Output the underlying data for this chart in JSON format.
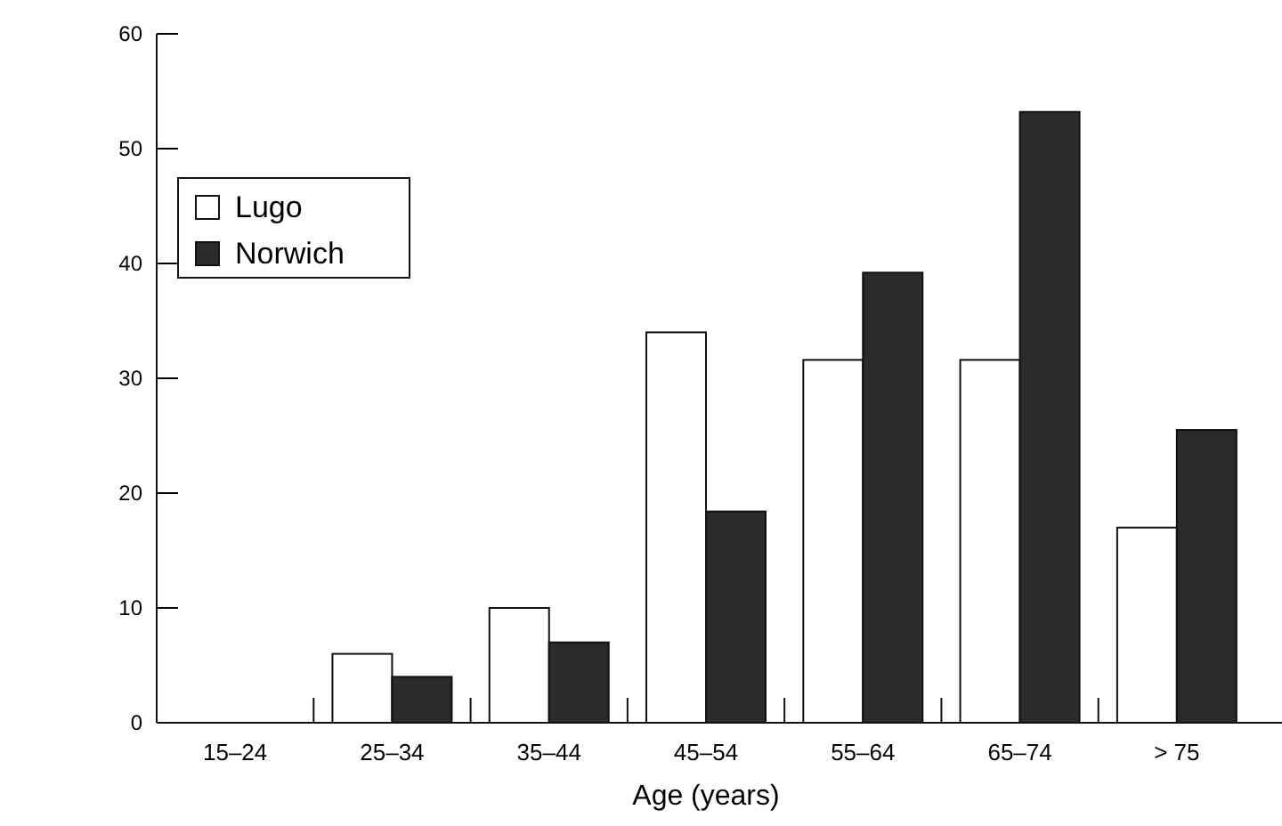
{
  "chart_data": {
    "type": "bar",
    "xlabel": "Age (years)",
    "categories": [
      "15–24",
      "25–34",
      "35–44",
      "45–54",
      "55–64",
      "65–74",
      "> 75"
    ],
    "series": [
      {
        "name": "Lugo",
        "color": "#ffffff",
        "values": [
          0,
          6,
          10,
          34,
          31.6,
          31.6,
          17
        ]
      },
      {
        "name": "Norwich",
        "color": "#2b2b2b",
        "values": [
          0,
          4,
          7,
          18.4,
          39.2,
          53.2,
          25.5
        ]
      }
    ],
    "ylim": [
      0,
      60
    ],
    "yticks": [
      0,
      10,
      20,
      30,
      40,
      50,
      60
    ],
    "legend": "top left",
    "grid": false
  }
}
